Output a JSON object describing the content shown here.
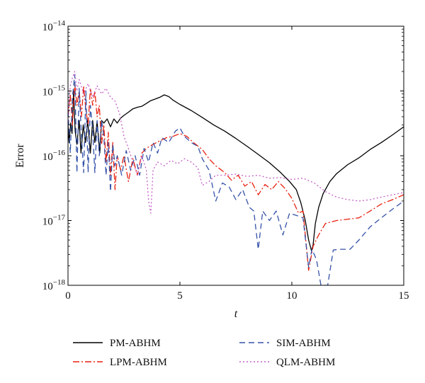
{
  "chart_data": {
    "type": "line",
    "title": "",
    "xlabel": "t",
    "ylabel": "Error",
    "xlim": [
      0,
      15
    ],
    "ylim": [
      1e-18,
      1e-14
    ],
    "yscale": "log",
    "grid": false,
    "legend_position": "bottom",
    "xticks": [
      0,
      5,
      10,
      15
    ],
    "xtick_labels": [
      "0",
      "5",
      "10",
      "15"
    ],
    "yticks": [
      1e-14,
      1e-15,
      1e-16,
      1e-17,
      1e-18
    ],
    "ytick_labels": [
      {
        "base": "10",
        "exp": "−14"
      },
      {
        "base": "10",
        "exp": "−15"
      },
      {
        "base": "10",
        "exp": "−16"
      },
      {
        "base": "10",
        "exp": "−17"
      },
      {
        "base": "10",
        "exp": "−18"
      }
    ],
    "series": [
      {
        "name": "PM-ABHM",
        "color": "#000000",
        "dash": "solid",
        "points": [
          [
            0.0,
            3e-16
          ],
          [
            0.05,
            1.6e-16
          ],
          [
            0.12,
            3.2e-16
          ],
          [
            0.18,
            2.2e-16
          ],
          [
            0.25,
            1e-15
          ],
          [
            0.32,
            2.4e-16
          ],
          [
            0.4,
            1.5e-16
          ],
          [
            0.5,
            3.5e-16
          ],
          [
            0.58,
            1.1e-16
          ],
          [
            0.68,
            3e-16
          ],
          [
            0.78,
            1.6e-16
          ],
          [
            0.88,
            3.5e-16
          ],
          [
            1.0,
            1.1e-16
          ],
          [
            1.1,
            3.5e-16
          ],
          [
            1.2,
            1.6e-16
          ],
          [
            1.3,
            3.4e-16
          ],
          [
            1.42,
            1.1e-16
          ],
          [
            1.5,
            3.5e-16
          ],
          [
            1.6,
            3.2e-16
          ],
          [
            1.75,
            3.7e-16
          ],
          [
            1.9,
            2.8e-16
          ],
          [
            2.05,
            3.7e-16
          ],
          [
            2.2,
            3.2e-16
          ],
          [
            2.35,
            3.8e-16
          ],
          [
            2.5,
            4.2e-16
          ],
          [
            2.7,
            4.7e-16
          ],
          [
            2.9,
            5.3e-16
          ],
          [
            3.1,
            5.6e-16
          ],
          [
            3.3,
            5.8e-16
          ],
          [
            3.5,
            6.4e-16
          ],
          [
            3.7,
            7.1e-16
          ],
          [
            3.9,
            7.5e-16
          ],
          [
            4.1,
            8e-16
          ],
          [
            4.3,
            8.7e-16
          ],
          [
            4.5,
            8.2e-16
          ],
          [
            4.7,
            7.2e-16
          ],
          [
            5.0,
            6.2e-16
          ],
          [
            5.5,
            5e-16
          ],
          [
            6.0,
            3.9e-16
          ],
          [
            6.5,
            3e-16
          ],
          [
            7.0,
            2.4e-16
          ],
          [
            7.5,
            1.85e-16
          ],
          [
            8.0,
            1.4e-16
          ],
          [
            8.5,
            1.05e-16
          ],
          [
            9.0,
            7.8e-17
          ],
          [
            9.5,
            5.5e-17
          ],
          [
            9.9,
            4e-17
          ],
          [
            10.2,
            3e-17
          ],
          [
            10.4,
            1.9e-17
          ],
          [
            10.6,
            1e-17
          ],
          [
            10.75,
            5e-18
          ],
          [
            10.88,
            3.4e-18
          ],
          [
            10.95,
            4.2e-18
          ],
          [
            11.05,
            9e-18
          ],
          [
            11.2,
            1.6e-17
          ],
          [
            11.4,
            2.6e-17
          ],
          [
            11.7,
            4e-17
          ],
          [
            12.0,
            5.3e-17
          ],
          [
            12.5,
            7.3e-17
          ],
          [
            13.0,
            9.3e-17
          ],
          [
            13.5,
            1.25e-16
          ],
          [
            14.0,
            1.6e-16
          ],
          [
            14.5,
            2.1e-16
          ],
          [
            15.0,
            2.8e-16
          ]
        ]
      },
      {
        "name": "LPM-ABHM",
        "color": "#e8210f",
        "dash": "9,3,2,3",
        "points": [
          [
            0.0,
            4e-16
          ],
          [
            0.1,
            9e-16
          ],
          [
            0.2,
            3e-16
          ],
          [
            0.3,
            1.3e-15
          ],
          [
            0.4,
            6e-16
          ],
          [
            0.5,
            1e-15
          ],
          [
            0.6,
            4e-16
          ],
          [
            0.7,
            1.2e-15
          ],
          [
            0.8,
            5e-16
          ],
          [
            0.9,
            3e-16
          ],
          [
            1.0,
            1.1e-15
          ],
          [
            1.1,
            6e-16
          ],
          [
            1.2,
            1e-15
          ],
          [
            1.3,
            4e-16
          ],
          [
            1.4,
            6e-16
          ],
          [
            1.5,
            1.5e-16
          ],
          [
            1.6,
            3e-16
          ],
          [
            1.7,
            8e-17
          ],
          [
            1.8,
            2.3e-16
          ],
          [
            1.9,
            5e-17
          ],
          [
            2.0,
            1.6e-16
          ],
          [
            2.1,
            3e-17
          ],
          [
            2.2,
            1e-16
          ],
          [
            2.35,
            6e-17
          ],
          [
            2.5,
            1e-16
          ],
          [
            2.7,
            4e-17
          ],
          [
            2.9,
            9e-17
          ],
          [
            3.1,
            5e-17
          ],
          [
            3.3,
            1.1e-16
          ],
          [
            3.5,
            1.3e-16
          ],
          [
            3.8,
            1.5e-16
          ],
          [
            4.1,
            1.7e-16
          ],
          [
            4.4,
            1.9e-16
          ],
          [
            4.7,
            2e-16
          ],
          [
            5.0,
            2.2e-16
          ],
          [
            5.3,
            2e-16
          ],
          [
            5.6,
            1.6e-16
          ],
          [
            6.0,
            1.25e-16
          ],
          [
            6.3,
            9e-17
          ],
          [
            6.6,
            7e-17
          ],
          [
            7.0,
            5.5e-17
          ],
          [
            7.3,
            4.2e-17
          ],
          [
            7.6,
            5e-17
          ],
          [
            7.9,
            3.4e-17
          ],
          [
            8.2,
            4e-17
          ],
          [
            8.5,
            2.5e-17
          ],
          [
            8.8,
            3.6e-17
          ],
          [
            9.1,
            3e-17
          ],
          [
            9.4,
            4e-17
          ],
          [
            9.7,
            3.1e-17
          ],
          [
            10.0,
            2.2e-17
          ],
          [
            10.3,
            1.3e-17
          ],
          [
            10.5,
            1.4e-17
          ],
          [
            10.75,
            1.7e-18
          ],
          [
            10.95,
            4e-18
          ],
          [
            11.2,
            6e-18
          ],
          [
            11.5,
            9e-18
          ],
          [
            12.0,
            1e-17
          ],
          [
            12.5,
            1.05e-17
          ],
          [
            13.0,
            1.1e-17
          ],
          [
            13.5,
            1.4e-17
          ],
          [
            14.0,
            1.8e-17
          ],
          [
            14.5,
            2.1e-17
          ],
          [
            15.0,
            2.5e-17
          ]
        ]
      },
      {
        "name": "SIM-ABHM",
        "color": "#3552a8",
        "dash": "8,5",
        "points": [
          [
            0.0,
            5e-16
          ],
          [
            0.1,
            1.1e-16
          ],
          [
            0.2,
            8e-16
          ],
          [
            0.3,
            1.8e-15
          ],
          [
            0.4,
            5.5e-17
          ],
          [
            0.5,
            1.1e-15
          ],
          [
            0.6,
            2e-16
          ],
          [
            0.7,
            5.5e-17
          ],
          [
            0.8,
            1e-15
          ],
          [
            0.9,
            5.5e-17
          ],
          [
            1.0,
            6e-16
          ],
          [
            1.1,
            2.5e-16
          ],
          [
            1.2,
            5.5e-17
          ],
          [
            1.3,
            3.5e-16
          ],
          [
            1.4,
            1e-16
          ],
          [
            1.5,
            3.5e-16
          ],
          [
            1.6,
            2e-16
          ],
          [
            1.7,
            5e-17
          ],
          [
            1.8,
            1.6e-16
          ],
          [
            1.9,
            2.8e-17
          ],
          [
            2.0,
            1.5e-16
          ],
          [
            2.1,
            7e-17
          ],
          [
            2.2,
            1e-16
          ],
          [
            2.4,
            5e-17
          ],
          [
            2.6,
            1.2e-16
          ],
          [
            2.8,
            6e-17
          ],
          [
            3.0,
            1e-16
          ],
          [
            3.2,
            5e-17
          ],
          [
            3.4,
            1.3e-16
          ],
          [
            3.6,
            8e-17
          ],
          [
            3.8,
            1.6e-16
          ],
          [
            4.0,
            1.1e-16
          ],
          [
            4.2,
            1.9e-16
          ],
          [
            4.5,
            1.6e-16
          ],
          [
            4.8,
            2.4e-16
          ],
          [
            5.0,
            2.7e-16
          ],
          [
            5.2,
            2e-16
          ],
          [
            5.5,
            1.6e-16
          ],
          [
            5.8,
            1.4e-16
          ],
          [
            6.0,
            9e-17
          ],
          [
            6.3,
            6e-17
          ],
          [
            6.6,
            2e-17
          ],
          [
            6.9,
            3.8e-17
          ],
          [
            7.2,
            3.3e-17
          ],
          [
            7.5,
            2.1e-17
          ],
          [
            7.8,
            3e-17
          ],
          [
            8.1,
            1.6e-17
          ],
          [
            8.3,
            1.4e-17
          ],
          [
            8.5,
            3.6e-18
          ],
          [
            8.7,
            1.4e-17
          ],
          [
            9.0,
            1e-17
          ],
          [
            9.3,
            1.4e-17
          ],
          [
            9.6,
            6e-18
          ],
          [
            9.9,
            1.3e-17
          ],
          [
            10.2,
            1.2e-17
          ],
          [
            10.5,
            1.1e-17
          ],
          [
            10.75,
            1.9e-18
          ],
          [
            10.9,
            3.6e-18
          ],
          [
            11.1,
            2.5e-18
          ],
          [
            11.3,
            1e-18
          ],
          [
            11.6,
            1e-18
          ],
          [
            11.85,
            3.5e-18
          ],
          [
            12.1,
            3.6e-18
          ],
          [
            12.6,
            3.6e-18
          ],
          [
            13.0,
            5e-18
          ],
          [
            13.5,
            8e-18
          ],
          [
            14.0,
            1.1e-17
          ],
          [
            14.5,
            1.5e-17
          ],
          [
            15.0,
            2e-17
          ]
        ]
      },
      {
        "name": "QLM-ABHM",
        "color": "#c45ec8",
        "dash": "2,3",
        "points": [
          [
            0.0,
            3e-16
          ],
          [
            0.1,
            1.2e-15
          ],
          [
            0.2,
            1.6e-15
          ],
          [
            0.3,
            2e-15
          ],
          [
            0.4,
            1e-15
          ],
          [
            0.5,
            1.5e-15
          ],
          [
            0.7,
            9e-16
          ],
          [
            0.9,
            1.3e-15
          ],
          [
            1.1,
            8e-16
          ],
          [
            1.3,
            1.2e-15
          ],
          [
            1.5,
            9e-16
          ],
          [
            1.7,
            1.1e-15
          ],
          [
            1.9,
            8e-16
          ],
          [
            2.1,
            7e-16
          ],
          [
            2.3,
            4.5e-16
          ],
          [
            2.5,
            2e-16
          ],
          [
            2.7,
            1.3e-16
          ],
          [
            2.9,
            8e-17
          ],
          [
            3.1,
            5e-17
          ],
          [
            3.3,
            1e-16
          ],
          [
            3.5,
            6e-17
          ],
          [
            3.6,
            2e-17
          ],
          [
            3.7,
            1.3e-17
          ],
          [
            3.8,
            6e-17
          ],
          [
            4.0,
            8e-17
          ],
          [
            4.3,
            7e-17
          ],
          [
            4.6,
            8.5e-17
          ],
          [
            4.9,
            7.5e-17
          ],
          [
            5.2,
            9e-17
          ],
          [
            5.5,
            8e-17
          ],
          [
            5.8,
            6.5e-17
          ],
          [
            6.0,
            3.5e-17
          ],
          [
            6.3,
            4e-17
          ],
          [
            6.6,
            5e-17
          ],
          [
            7.0,
            5e-17
          ],
          [
            7.5,
            5.2e-17
          ],
          [
            8.0,
            4.8e-17
          ],
          [
            8.5,
            5e-17
          ],
          [
            9.0,
            4.5e-17
          ],
          [
            9.5,
            4.6e-17
          ],
          [
            10.0,
            4.3e-17
          ],
          [
            10.5,
            4.5e-17
          ],
          [
            11.0,
            3.8e-17
          ],
          [
            11.5,
            2.8e-17
          ],
          [
            12.0,
            2.3e-17
          ],
          [
            12.5,
            2.1e-17
          ],
          [
            13.0,
            2e-17
          ],
          [
            13.5,
            2.1e-17
          ],
          [
            14.0,
            2.3e-17
          ],
          [
            14.5,
            2.5e-17
          ],
          [
            15.0,
            2.7e-17
          ]
        ]
      }
    ]
  }
}
